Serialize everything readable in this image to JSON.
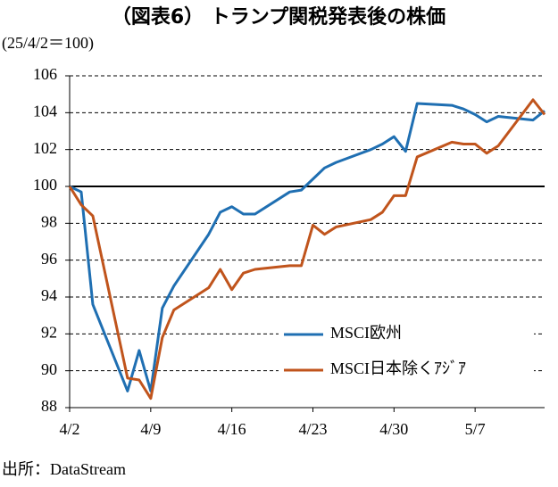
{
  "chart_data": {
    "type": "line",
    "title": "（図表6） トランプ関税発表後の株価",
    "y_label": "(25/4/2＝100)",
    "source": "出所：DataStream",
    "x": [
      0,
      1,
      2,
      5,
      6,
      7,
      8,
      9,
      12,
      13,
      14,
      15,
      16,
      19,
      20,
      21,
      22,
      23,
      26,
      27,
      28,
      29,
      30,
      33,
      34,
      35,
      36,
      37,
      40,
      41
    ],
    "xlim": [
      0,
      41
    ],
    "xticks": [
      {
        "value": 0,
        "label": "4/2"
      },
      {
        "value": 7,
        "label": "4/9"
      },
      {
        "value": 14,
        "label": "4/16"
      },
      {
        "value": 21,
        "label": "4/23"
      },
      {
        "value": 28,
        "label": "4/30"
      },
      {
        "value": 35,
        "label": "5/7"
      }
    ],
    "ylim": [
      88,
      106
    ],
    "yticks": [
      88,
      90,
      92,
      94,
      96,
      98,
      100,
      102,
      104,
      106
    ],
    "hline": 100,
    "grid": true,
    "legend": "lower right",
    "series": [
      {
        "name": "MSCI欧州",
        "color": "#1f6fb2",
        "values": [
          100,
          99.7,
          93.6,
          88.9,
          91.1,
          88.9,
          93.4,
          94.6,
          97.4,
          98.6,
          98.9,
          98.5,
          98.5,
          99.7,
          99.8,
          100.4,
          101.0,
          101.3,
          102.0,
          102.3,
          102.7,
          101.9,
          104.5,
          104.4,
          104.2,
          103.9,
          103.5,
          103.8,
          103.6,
          104.1
        ]
      },
      {
        "name": "MSCI日本除くｱｼﾞｱ",
        "color": "#c0541c",
        "values": [
          100,
          99.0,
          98.4,
          89.6,
          89.5,
          88.5,
          91.8,
          93.3,
          94.5,
          95.5,
          94.4,
          95.3,
          95.5,
          95.7,
          95.7,
          97.9,
          97.4,
          97.8,
          98.2,
          98.6,
          99.5,
          99.5,
          101.6,
          102.4,
          102.3,
          102.3,
          101.8,
          102.2,
          104.7,
          103.9
        ]
      }
    ]
  }
}
